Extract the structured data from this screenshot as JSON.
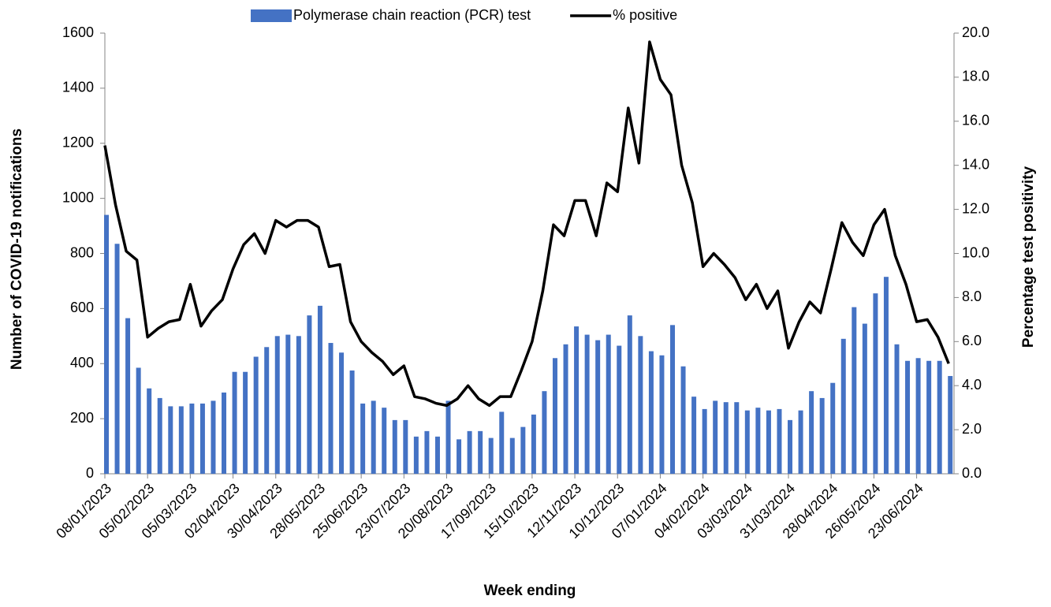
{
  "chart_data": {
    "type": "bar",
    "xlabel": "Week ending",
    "ylabel": "Number of COVID-19 notifications",
    "y2label": "Percentage test positivity",
    "categories": [
      "08/01/2023",
      null,
      null,
      null,
      "05/02/2023",
      null,
      null,
      null,
      "05/03/2023",
      null,
      null,
      null,
      "02/04/2023",
      null,
      null,
      null,
      "30/04/2023",
      null,
      null,
      null,
      "28/05/2023",
      null,
      null,
      null,
      "25/06/2023",
      null,
      null,
      null,
      "23/07/2023",
      null,
      null,
      null,
      "20/08/2023",
      null,
      null,
      null,
      "17/09/2023",
      null,
      null,
      null,
      "15/10/2023",
      null,
      null,
      null,
      "12/11/2023",
      null,
      null,
      null,
      "10/12/2023",
      null,
      null,
      null,
      "07/01/2024",
      null,
      null,
      null,
      "04/02/2024",
      null,
      null,
      null,
      "03/03/2024",
      null,
      null,
      null,
      "31/03/2024",
      null,
      null,
      null,
      "28/04/2024",
      null,
      null,
      null,
      "26/05/2024",
      null,
      null,
      null,
      "23/06/2024",
      null,
      null,
      null
    ],
    "series": [
      {
        "name": "Polymerase chain reaction (PCR) test",
        "type": "bar",
        "color": "#4472c4",
        "values": [
          940,
          835,
          565,
          385,
          310,
          275,
          245,
          245,
          255,
          255,
          265,
          295,
          370,
          370,
          425,
          460,
          500,
          505,
          500,
          575,
          610,
          475,
          440,
          375,
          255,
          265,
          240,
          195,
          195,
          135,
          155,
          135,
          265,
          125,
          155,
          155,
          130,
          225,
          130,
          170,
          215,
          300,
          420,
          470,
          535,
          505,
          485,
          505,
          465,
          575,
          500,
          445,
          430,
          540,
          390,
          280,
          235,
          265,
          260,
          260,
          230,
          240,
          230,
          235,
          195,
          230,
          300,
          275,
          330,
          490,
          605,
          545,
          655,
          715,
          470,
          410,
          420,
          410,
          410,
          355
        ]
      },
      {
        "name": "% positive",
        "type": "line",
        "axis": "y2",
        "color": "#000000",
        "values": [
          14.9,
          12.2,
          10.1,
          9.7,
          6.2,
          6.6,
          6.9,
          7.0,
          8.6,
          6.7,
          7.4,
          7.9,
          9.3,
          10.4,
          10.9,
          10.0,
          11.5,
          11.2,
          11.5,
          11.5,
          11.2,
          9.4,
          9.5,
          6.9,
          6.0,
          5.5,
          5.1,
          4.5,
          4.9,
          3.5,
          3.4,
          3.2,
          3.1,
          3.4,
          4.0,
          3.4,
          3.1,
          3.5,
          3.5,
          4.7,
          6.0,
          8.3,
          11.3,
          10.8,
          12.4,
          12.4,
          10.8,
          13.2,
          12.8,
          16.6,
          14.1,
          19.6,
          17.9,
          17.2,
          14.0,
          12.3,
          9.4,
          10.0,
          9.5,
          8.9,
          7.9,
          8.6,
          7.5,
          8.3,
          5.7,
          6.9,
          7.8,
          7.3,
          9.3,
          11.4,
          10.5,
          9.9,
          11.3,
          12.0,
          9.9,
          8.6,
          6.9,
          7.0,
          6.2,
          5.0
        ]
      }
    ],
    "ylim": [
      0,
      1600
    ],
    "yticks": [
      0,
      200,
      400,
      600,
      800,
      1000,
      1200,
      1400,
      1600
    ],
    "y2lim": [
      0,
      20
    ],
    "y2ticks": [
      {
        "value": 0,
        "label": "0.0"
      },
      {
        "value": 2,
        "label": "2.0"
      },
      {
        "value": 4,
        "label": "4.0"
      },
      {
        "value": 6,
        "label": "6.0"
      },
      {
        "value": 8,
        "label": "8.0"
      },
      {
        "value": 10,
        "label": "10.0"
      },
      {
        "value": 12,
        "label": "12.0"
      },
      {
        "value": 14,
        "label": "14.0"
      },
      {
        "value": 16,
        "label": "16.0"
      },
      {
        "value": 18,
        "label": "18.0"
      },
      {
        "value": 20,
        "label": "20.0"
      }
    ],
    "grid": false,
    "legend": "top"
  }
}
